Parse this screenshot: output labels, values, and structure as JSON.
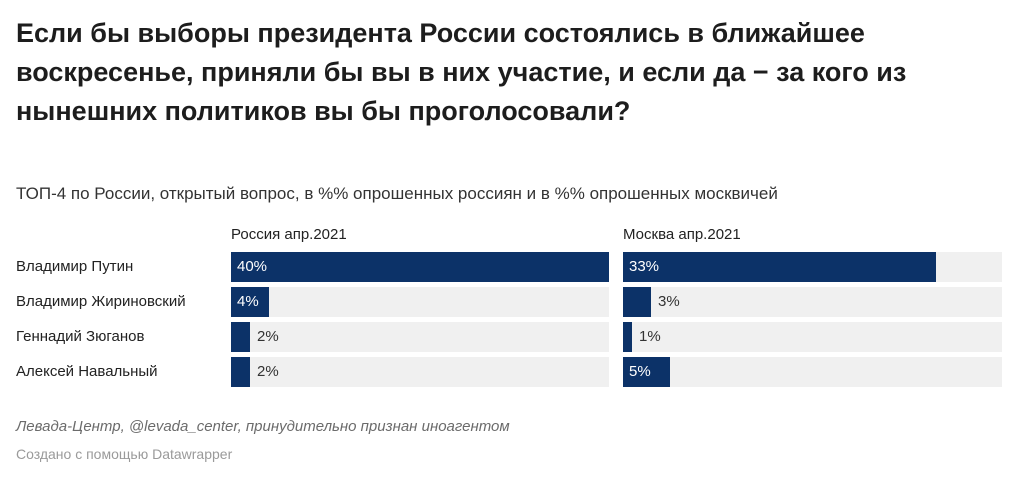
{
  "title": "Если бы выборы президента России состоялись в ближайшее воскресенье, приняли бы вы в них участие, и если да − за кого из нынешних политиков вы бы проголосовали?",
  "subtitle": "ТОП-4 по России, открытый вопрос, в %% опрошенных россиян и в %% опрошенных москвичей",
  "source": "Левада-Центр, @levada_center, принудительно признан иноагентом",
  "credit": "Создано с помощью Datawrapper",
  "colors": {
    "bar": "#0c3268",
    "track": "#f0f0f0"
  },
  "chart_data": {
    "type": "bar",
    "orientation": "horizontal",
    "categories": [
      "Владимир Путин",
      "Владимир Жириновский",
      "Геннадий Зюганов",
      "Алексей Навальный"
    ],
    "series": [
      {
        "name": "Россия апр.2021",
        "values": [
          40,
          4,
          2,
          2
        ],
        "labels": [
          "40%",
          "4%",
          "2%",
          "2%"
        ]
      },
      {
        "name": "Москва апр.2021",
        "values": [
          33,
          3,
          1,
          5
        ],
        "labels": [
          "33%",
          "3%",
          "1%",
          "5%"
        ]
      }
    ],
    "xlim": [
      0,
      40
    ],
    "unit": "%"
  }
}
